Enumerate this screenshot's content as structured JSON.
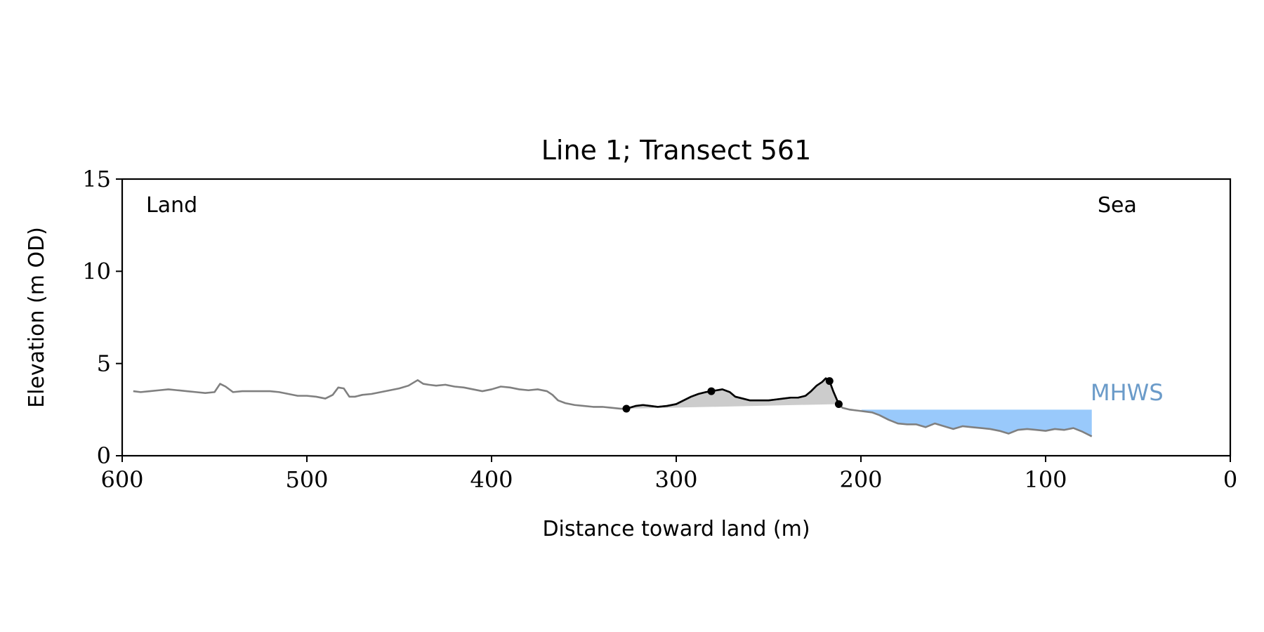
{
  "chart_data": {
    "type": "line",
    "title": "Line 1; Transect 561",
    "xlabel": "Distance toward land (m)",
    "ylabel": "Elevation (m OD)",
    "xlim": [
      600,
      0
    ],
    "ylim": [
      0,
      15
    ],
    "x_ticks": [
      600,
      500,
      400,
      300,
      200,
      100,
      0
    ],
    "y_ticks": [
      0,
      5,
      10,
      15
    ],
    "grid": false,
    "annotations": {
      "land": "Land",
      "sea": "Sea",
      "mhws_label": "MHWS"
    },
    "mhws_level": 2.5,
    "mhws_extent_x": [
      200,
      75
    ],
    "colors": {
      "profile": "#808080",
      "dune": "#000000",
      "dune_fill": "#cccccc",
      "sea_fill": "#99c9fb",
      "mhws_text": "#6b9bc9"
    },
    "series": [
      {
        "x": [
          594,
          590,
          585,
          580,
          575,
          570,
          565,
          560,
          555,
          550,
          547,
          544,
          540,
          535,
          530,
          525,
          520,
          515,
          510,
          505,
          500,
          495,
          490,
          486,
          483,
          480,
          477,
          474,
          470,
          465,
          460,
          455,
          450,
          445,
          440,
          437,
          434,
          430,
          425,
          420,
          415,
          410,
          405,
          400,
          395,
          390,
          385,
          380,
          375,
          370,
          367,
          364,
          360,
          355,
          350,
          345,
          340,
          335,
          330,
          327,
          322,
          318,
          314,
          310,
          305,
          300,
          296,
          292,
          288,
          284,
          281,
          278,
          275,
          271,
          268,
          264,
          260,
          255,
          250,
          246,
          242,
          238,
          234,
          230,
          227,
          224,
          221,
          219,
          217,
          215,
          212,
          210,
          206,
          202,
          198,
          194,
          190,
          185,
          180,
          175,
          170,
          165,
          160,
          155,
          150,
          145,
          140,
          135,
          130,
          125,
          120,
          115,
          110,
          105,
          100,
          95,
          90,
          85,
          80,
          75
        ],
        "y": [
          3.5,
          3.45,
          3.5,
          3.55,
          3.6,
          3.55,
          3.5,
          3.45,
          3.4,
          3.45,
          3.9,
          3.75,
          3.45,
          3.5,
          3.5,
          3.5,
          3.5,
          3.45,
          3.35,
          3.25,
          3.25,
          3.2,
          3.1,
          3.3,
          3.7,
          3.65,
          3.2,
          3.2,
          3.3,
          3.35,
          3.45,
          3.55,
          3.65,
          3.8,
          4.1,
          3.9,
          3.85,
          3.8,
          3.85,
          3.75,
          3.7,
          3.6,
          3.5,
          3.6,
          3.75,
          3.7,
          3.6,
          3.55,
          3.6,
          3.5,
          3.3,
          3.0,
          2.85,
          2.75,
          2.7,
          2.65,
          2.65,
          2.6,
          2.55,
          2.55,
          2.7,
          2.75,
          2.7,
          2.65,
          2.7,
          2.8,
          3.0,
          3.2,
          3.35,
          3.45,
          3.5,
          3.55,
          3.6,
          3.45,
          3.2,
          3.1,
          3.0,
          3.0,
          3.0,
          3.05,
          3.1,
          3.15,
          3.15,
          3.25,
          3.5,
          3.8,
          4.0,
          4.2,
          4.05,
          3.5,
          2.8,
          2.6,
          2.5,
          2.45,
          2.4,
          2.35,
          2.2,
          1.95,
          1.75,
          1.7,
          1.7,
          1.55,
          1.75,
          1.6,
          1.45,
          1.6,
          1.55,
          1.5,
          1.45,
          1.35,
          1.2,
          1.4,
          1.45,
          1.4,
          1.35,
          1.45,
          1.4,
          1.5,
          1.3,
          1.05
        ]
      }
    ],
    "dune_x_range": [
      327,
      212
    ],
    "dune_points": [
      {
        "x": 327,
        "y": 2.55
      },
      {
        "x": 281,
        "y": 3.5
      },
      {
        "x": 217,
        "y": 4.05
      },
      {
        "x": 212,
        "y": 2.8
      }
    ]
  }
}
